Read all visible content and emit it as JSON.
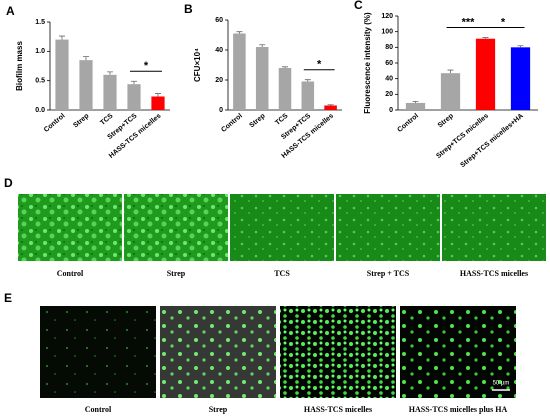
{
  "chart_data": [
    {
      "type": "bar",
      "panel": "A",
      "ylabel": "Biofilm mass",
      "categories": [
        "Control",
        "Strep",
        "TCS",
        "Strep+TCS",
        "HASS-TCS micelles"
      ],
      "values": [
        1.2,
        0.85,
        0.6,
        0.44,
        0.23
      ],
      "errors": [
        0.06,
        0.06,
        0.05,
        0.05,
        0.05
      ],
      "colors": [
        "#a6a6a6",
        "#a6a6a6",
        "#a6a6a6",
        "#a6a6a6",
        "#ff0000"
      ],
      "ylim": [
        0,
        1.5
      ],
      "yticks": [
        {
          "value": 0,
          "label": "0.0"
        },
        0.5,
        {
          "value": 1,
          "label": "1.0"
        },
        1.5
      ],
      "annotations": [
        {
          "text": "*",
          "between": [
            3,
            4
          ]
        }
      ]
    },
    {
      "type": "bar",
      "panel": "B",
      "ylabel": "CFU×10⁴",
      "categories": [
        "Control",
        "Strep",
        "TCS",
        "Strep+TCS",
        "HASS-TCS micelles"
      ],
      "values": [
        51,
        42,
        28,
        19,
        3
      ],
      "errors": [
        1.2,
        1.5,
        0.8,
        1.2,
        0.5
      ],
      "colors": [
        "#a6a6a6",
        "#a6a6a6",
        "#a6a6a6",
        "#a6a6a6",
        "#ff0000"
      ],
      "ylim": [
        0,
        60
      ],
      "yticks": [
        0,
        20,
        40,
        60
      ],
      "annotations": [
        {
          "text": "*",
          "between": [
            3,
            4
          ]
        }
      ]
    },
    {
      "type": "bar",
      "panel": "C",
      "ylabel": "Fluorescence intensity (%)",
      "categories": [
        "Control",
        "Strep",
        "Strep+TCS micelles",
        "Strep+TCS micelles+HA"
      ],
      "values": [
        9,
        47,
        91,
        80
      ],
      "errors": [
        2,
        4,
        1.5,
        2
      ],
      "colors": [
        "#a6a6a6",
        "#a6a6a6",
        "#ff0000",
        "#0000ff"
      ],
      "ylim": [
        0,
        120
      ],
      "yticks": [
        0,
        20,
        40,
        60,
        80,
        100,
        120
      ],
      "annotations": [
        {
          "text": "***",
          "between": [
            1,
            2
          ]
        },
        {
          "text": "*",
          "between": [
            2,
            3
          ]
        }
      ]
    }
  ],
  "panels": {
    "D": {
      "letter": "D",
      "labels": [
        "Control",
        "Strep",
        "TCS",
        "Strep + TCS",
        "HASS-TCS micelles"
      ]
    },
    "E": {
      "letter": "E",
      "labels": [
        "Control",
        "Strep",
        "HASS-TCS micelles",
        "HASS-TCS micelles plus HA"
      ],
      "scale_bar": "50 µm"
    }
  }
}
